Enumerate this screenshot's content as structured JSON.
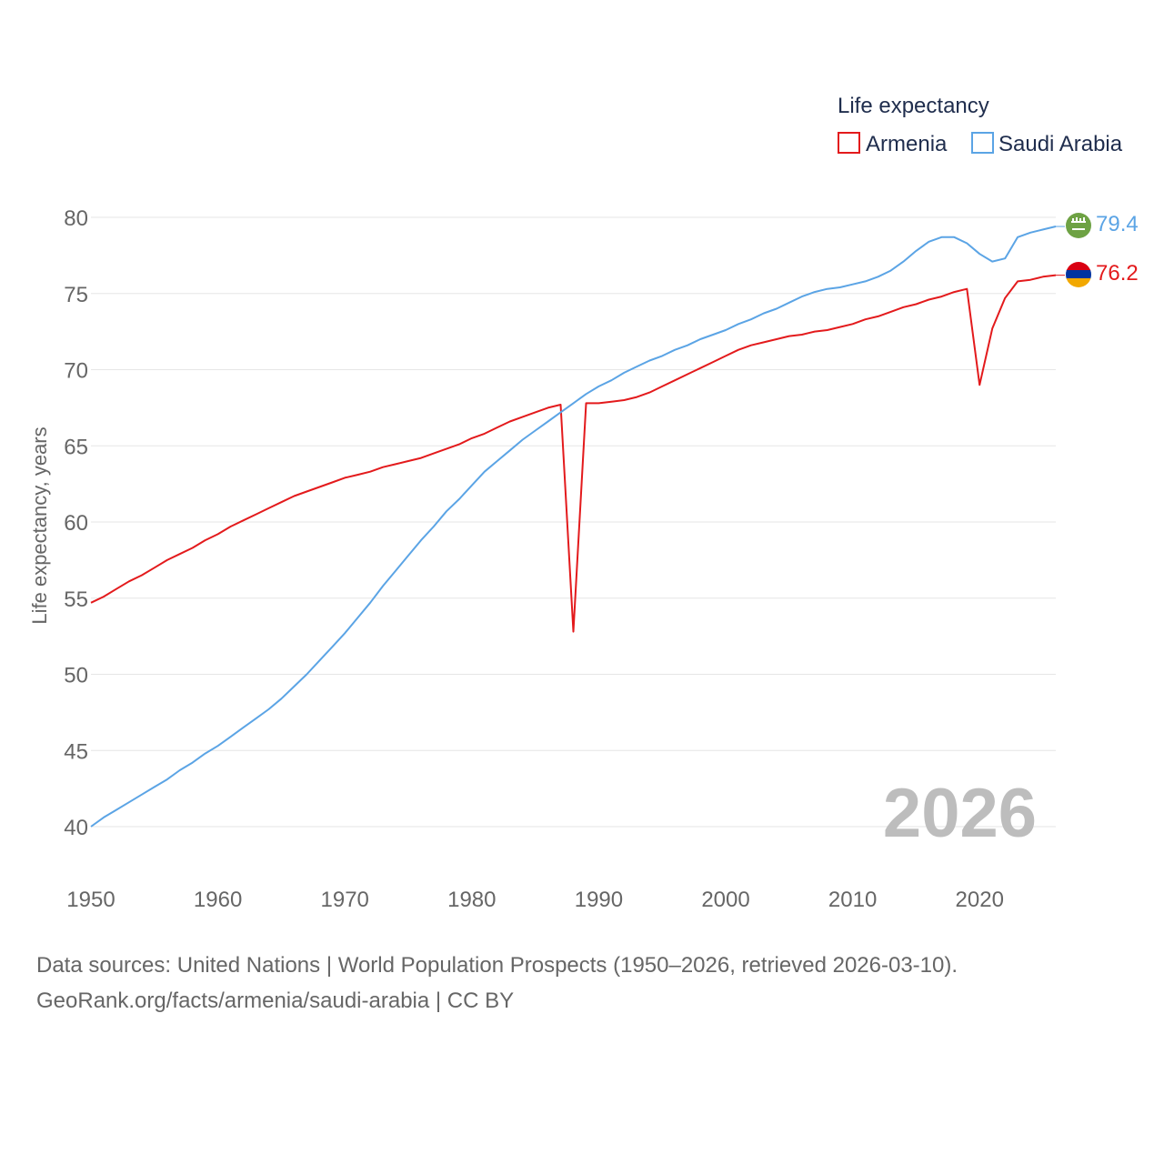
{
  "chart_data": {
    "type": "line",
    "legend_title": "Life expectancy",
    "ylabel": "Life expectancy, years",
    "xlabel": "",
    "year_label": "2026",
    "legend_placement": "top-right",
    "xlim": [
      1950,
      2026
    ],
    "ylim": [
      40,
      80
    ],
    "x_ticks": [
      "1950",
      "1960",
      "1970",
      "1980",
      "1990",
      "2000",
      "2010",
      "2020"
    ],
    "y_ticks": [
      "40",
      "45",
      "50",
      "55",
      "60",
      "65",
      "70",
      "75",
      "80"
    ],
    "x": [
      1950,
      1951,
      1952,
      1953,
      1954,
      1955,
      1956,
      1957,
      1958,
      1959,
      1960,
      1961,
      1962,
      1963,
      1964,
      1965,
      1966,
      1967,
      1968,
      1969,
      1970,
      1971,
      1972,
      1973,
      1974,
      1975,
      1976,
      1977,
      1978,
      1979,
      1980,
      1981,
      1982,
      1983,
      1984,
      1985,
      1986,
      1987,
      1988,
      1989,
      1990,
      1991,
      1992,
      1993,
      1994,
      1995,
      1996,
      1997,
      1998,
      1999,
      2000,
      2001,
      2002,
      2003,
      2004,
      2005,
      2006,
      2007,
      2008,
      2009,
      2010,
      2011,
      2012,
      2013,
      2014,
      2015,
      2016,
      2017,
      2018,
      2019,
      2020,
      2021,
      2022,
      2023,
      2024,
      2025,
      2026
    ],
    "series": [
      {
        "name": "Armenia",
        "color": "#e31a1c",
        "end_label": "76.2",
        "flag": "armenia-flag",
        "values": [
          54.7,
          55.1,
          55.6,
          56.1,
          56.5,
          57.0,
          57.5,
          57.9,
          58.3,
          58.8,
          59.2,
          59.7,
          60.1,
          60.5,
          60.9,
          61.3,
          61.7,
          62.0,
          62.3,
          62.6,
          62.9,
          63.1,
          63.3,
          63.6,
          63.8,
          64.0,
          64.2,
          64.5,
          64.8,
          65.1,
          65.5,
          65.8,
          66.2,
          66.6,
          66.9,
          67.2,
          67.5,
          67.7,
          52.8,
          67.8,
          67.8,
          67.9,
          68.0,
          68.2,
          68.5,
          68.9,
          69.3,
          69.7,
          70.1,
          70.5,
          70.9,
          71.3,
          71.6,
          71.8,
          72.0,
          72.2,
          72.3,
          72.5,
          72.6,
          72.8,
          73.0,
          73.3,
          73.5,
          73.8,
          74.1,
          74.3,
          74.6,
          74.8,
          75.1,
          75.3,
          69.0,
          72.7,
          74.7,
          75.8,
          75.9,
          76.1,
          76.2
        ]
      },
      {
        "name": "Saudi Arabia",
        "color": "#5ba4e5",
        "end_label": "79.4",
        "flag": "saudi-arabia-flag",
        "values": [
          40.0,
          40.6,
          41.1,
          41.6,
          42.1,
          42.6,
          43.1,
          43.7,
          44.2,
          44.8,
          45.3,
          45.9,
          46.5,
          47.1,
          47.7,
          48.4,
          49.2,
          50.0,
          50.9,
          51.8,
          52.7,
          53.7,
          54.7,
          55.8,
          56.8,
          57.8,
          58.8,
          59.7,
          60.7,
          61.5,
          62.4,
          63.3,
          64.0,
          64.7,
          65.4,
          66.0,
          66.6,
          67.2,
          67.8,
          68.4,
          68.9,
          69.3,
          69.8,
          70.2,
          70.6,
          70.9,
          71.3,
          71.6,
          72.0,
          72.3,
          72.6,
          73.0,
          73.3,
          73.7,
          74.0,
          74.4,
          74.8,
          75.1,
          75.3,
          75.4,
          75.6,
          75.8,
          76.1,
          76.5,
          77.1,
          77.8,
          78.4,
          78.7,
          78.7,
          78.3,
          77.6,
          77.1,
          77.3,
          78.7,
          79.0,
          79.2,
          79.4
        ]
      }
    ]
  },
  "footer": {
    "sources": "Data sources: United Nations | World Population Prospects (1950–2026, retrieved 2026-03-10).",
    "credit": "GeoRank.org/facts/armenia/saudi-arabia | CC BY"
  }
}
